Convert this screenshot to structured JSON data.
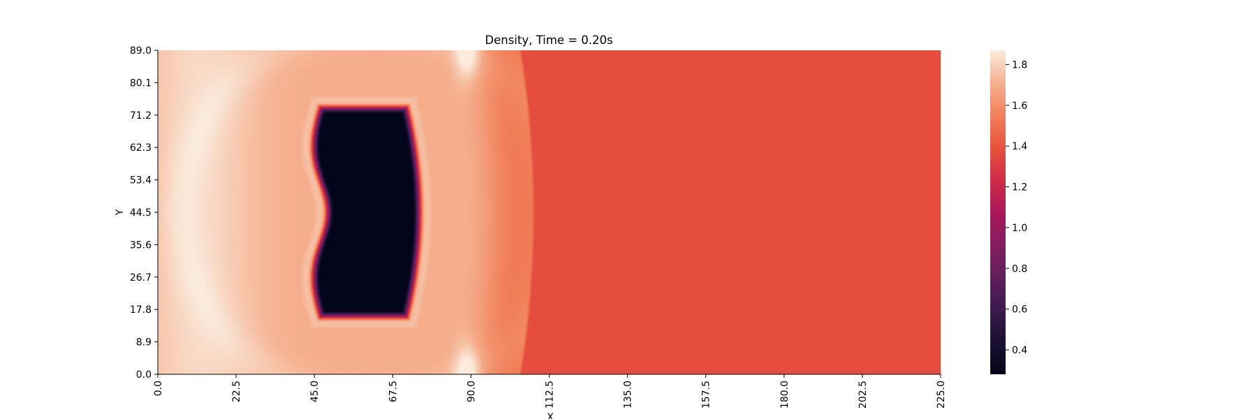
{
  "chart_data": {
    "type": "heatmap",
    "title": "Density, Time = 0.20s",
    "xlabel": "X",
    "ylabel": "Y",
    "xlim": [
      0,
      225
    ],
    "ylim": [
      0,
      89
    ],
    "xticks": [
      "0.0",
      "22.5",
      "45.0",
      "67.5",
      "90.0",
      "112.5",
      "135.0",
      "157.5",
      "180.0",
      "202.5",
      "225.0"
    ],
    "yticks": [
      "0.0",
      "8.9",
      "17.8",
      "26.7",
      "35.6",
      "44.5",
      "53.4",
      "62.3",
      "71.2",
      "80.1",
      "89.0"
    ],
    "colorbar": {
      "colormap": "rocket",
      "min": 0.28,
      "max": 1.87,
      "ticks": [
        "0.4",
        "0.6",
        "0.8",
        "1.0",
        "1.2",
        "1.4",
        "1.6",
        "1.8"
      ]
    },
    "field": {
      "ambient_density": 1.37,
      "shocked_density_range": [
        1.5,
        1.85
      ],
      "shock_front_x": [
        95,
        108
      ],
      "low_density_bubble": {
        "center_x": 57,
        "center_y": 44.5,
        "min_density": 0.28,
        "x_extent": [
          40,
          75
        ],
        "y_extent": [
          15,
          74
        ]
      }
    }
  }
}
